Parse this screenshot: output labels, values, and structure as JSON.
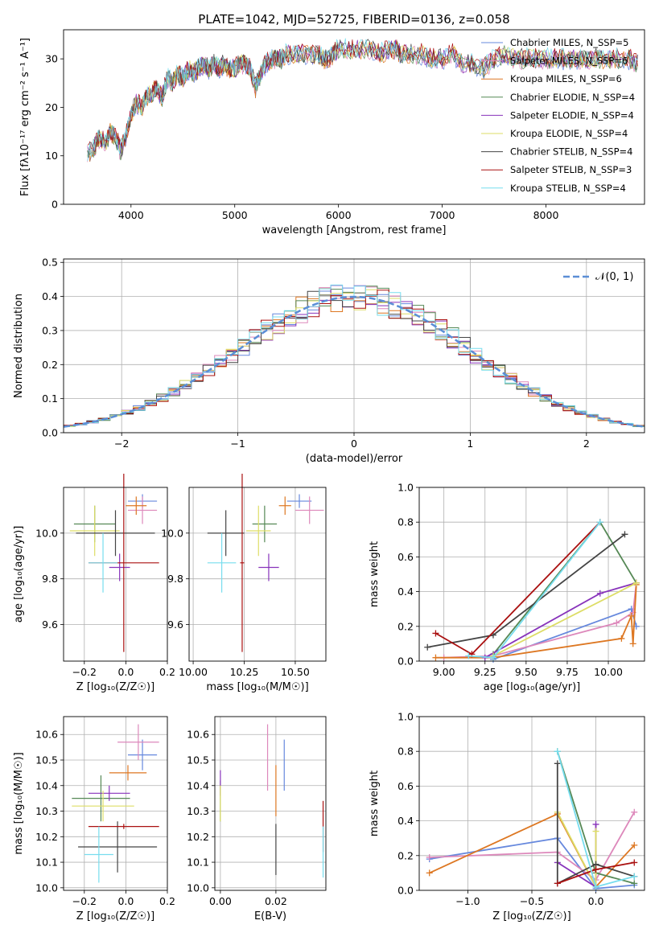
{
  "title": "PLATE=1042, MJD=52725, FIBERID=0136, z=0.058",
  "colors": [
    "#6688dd",
    "#dd88bb",
    "#dd7722",
    "#558855",
    "#8833bb",
    "#dddd66",
    "#444444",
    "#aa1111",
    "#77ddee"
  ],
  "chart_data": [
    {
      "type": "line",
      "xlabel": "wavelength [Angstrom, rest frame]",
      "ylabel": "Flux [fλ10⁻¹⁷ erg cm⁻² s⁻¹ A⁻¹]",
      "xlim": [
        3350,
        8950
      ],
      "ylim": [
        0,
        36
      ],
      "xticks": [
        "4000",
        "5000",
        "6000",
        "7000",
        "8000"
      ],
      "yticks": [
        "0",
        "10",
        "20",
        "30"
      ],
      "grid": false,
      "legend_position": "upper-right",
      "legend": [
        "Chabrier MILES, N_SSP=5",
        "Salpeter MILES, N_SSP=6",
        "Kroupa MILES, N_SSP=6",
        "Chabrier ELODIE, N_SSP=4",
        "Salpeter ELODIE, N_SSP=4",
        "Kroupa ELODIE, N_SSP=4",
        "Chabrier STELIB, N_SSP=4",
        "Salpeter STELIB, N_SSP=3",
        "Kroupa STELIB, N_SSP=4"
      ],
      "spectrum": {
        "x": [
          3580,
          3650,
          3700,
          3760,
          3800,
          3850,
          3900,
          3950,
          4000,
          4050,
          4100,
          4150,
          4200,
          4250,
          4300,
          4350,
          4400,
          4450,
          4500,
          4550,
          4600,
          4650,
          4700,
          4750,
          4800,
          4850,
          4900,
          4950,
          5000,
          5050,
          5100,
          5150,
          5200,
          5250,
          5300,
          5350,
          5400,
          5450,
          5500,
          5600,
          5700,
          5800,
          5850,
          5890,
          5950,
          6000,
          6100,
          6200,
          6300,
          6400,
          6500,
          6560,
          6600,
          6700,
          6800,
          6900,
          7000,
          7100,
          7200,
          7300,
          7400,
          7500,
          7600,
          7700,
          7800,
          7900,
          8000,
          8100,
          8200,
          8300,
          8400,
          8500,
          8600,
          8700,
          8800,
          8900
        ],
        "y": [
          10,
          12,
          14,
          13,
          15,
          14,
          11,
          14,
          18,
          21,
          20,
          22,
          23,
          24,
          22,
          26,
          25,
          27,
          26,
          28,
          27,
          28,
          29,
          28,
          29,
          28,
          29,
          28,
          28,
          29,
          29,
          28,
          24,
          27,
          29,
          30,
          30,
          30,
          31,
          31,
          31,
          31,
          30,
          30,
          31,
          32,
          32,
          32,
          32,
          31,
          32,
          32,
          31,
          31,
          31,
          30,
          30,
          31,
          29,
          29,
          28,
          30,
          31,
          30,
          30,
          30,
          30,
          30,
          30,
          30,
          30,
          30,
          30,
          30,
          30,
          29
        ]
      }
    },
    {
      "type": "bar",
      "xlabel": "(data-model)/error",
      "ylabel": "Normed distribution",
      "xlim": [
        -2.5,
        2.5
      ],
      "ylim": [
        0,
        0.51
      ],
      "xticks": [
        "−2",
        "−1",
        "0",
        "1",
        "2"
      ],
      "yticks": [
        "0.0",
        "0.1",
        "0.2",
        "0.3",
        "0.4",
        "0.5"
      ],
      "grid": true,
      "legend_position": "upper-right",
      "legend": [
        "𝒩(0, 1)"
      ],
      "bin_width": 0.1
    },
    {
      "type": "scatter",
      "xlabel": "Z [log₁₀(Z/Z☉)]",
      "ylabel": "age  [log₁₀(age/yr)]",
      "xlim": [
        -0.3,
        0.2
      ],
      "ylim": [
        9.44,
        10.2
      ],
      "xticks": [
        "−0.2",
        "0.0",
        "0.2"
      ],
      "yticks": [
        "9.6",
        "9.8",
        "10.0"
      ],
      "grid": true,
      "points": [
        {
          "x": 0.08,
          "y": 10.14,
          "xerr": 0.07,
          "yerr": 0.03
        },
        {
          "x": 0.08,
          "y": 10.1,
          "xerr": 0.07,
          "yerr": 0.06
        },
        {
          "x": 0.05,
          "y": 10.12,
          "xerr": 0.05,
          "yerr": 0.04
        },
        {
          "x": -0.15,
          "y": 10.04,
          "xerr": 0.1,
          "yerr": 0.08
        },
        {
          "x": -0.03,
          "y": 9.85,
          "xerr": 0.05,
          "yerr": 0.06
        },
        {
          "x": -0.15,
          "y": 10.01,
          "xerr": 0.12,
          "yerr": 0.11
        },
        {
          "x": -0.05,
          "y": 10.0,
          "xerr": 0.19,
          "yerr": 0.1
        },
        {
          "x": -0.01,
          "y": 9.87,
          "xerr": 0.17,
          "yerr": 0.39
        },
        {
          "x": -0.11,
          "y": 9.87,
          "xerr": 0.07,
          "yerr": 0.13
        }
      ]
    },
    {
      "type": "scatter",
      "xlabel": "mass [log₁₀(M/M☉)]",
      "ylabel": "",
      "xlim": [
        9.98,
        10.65
      ],
      "ylim": [
        9.44,
        10.2
      ],
      "xticks": [
        "10.00",
        "10.25",
        "10.50"
      ],
      "yticks": [
        "9.6",
        "9.8",
        "10.0"
      ],
      "grid": true,
      "points": [
        {
          "x": 10.52,
          "y": 10.14,
          "xerr": 0.06,
          "yerr": 0.03
        },
        {
          "x": 10.57,
          "y": 10.1,
          "xerr": 0.07,
          "yerr": 0.06
        },
        {
          "x": 10.45,
          "y": 10.12,
          "xerr": 0.03,
          "yerr": 0.04
        },
        {
          "x": 10.35,
          "y": 10.04,
          "xerr": 0.06,
          "yerr": 0.08
        },
        {
          "x": 10.37,
          "y": 9.85,
          "xerr": 0.05,
          "yerr": 0.06
        },
        {
          "x": 10.32,
          "y": 10.01,
          "xerr": 0.06,
          "yerr": 0.11
        },
        {
          "x": 10.16,
          "y": 10.0,
          "xerr": 0.09,
          "yerr": 0.1
        },
        {
          "x": 10.24,
          "y": 9.87,
          "xerr": 0.01,
          "yerr": 0.39
        },
        {
          "x": 10.14,
          "y": 9.87,
          "xerr": 0.07,
          "yerr": 0.13
        }
      ]
    },
    {
      "type": "line",
      "xlabel": "age  [log₁₀(age/yr)]",
      "ylabel": "mass weight",
      "xlim": [
        8.85,
        10.22
      ],
      "ylim": [
        0,
        1
      ],
      "xticks": [
        "9.00",
        "9.25",
        "9.50",
        "9.75",
        "10.00"
      ],
      "yticks": [
        "0.0",
        "0.2",
        "0.4",
        "0.6",
        "0.8",
        "1.0"
      ],
      "grid": true,
      "series": [
        {
          "x": [
            9.3,
            10.14,
            10.17
          ],
          "y": [
            0.01,
            0.3,
            0.2
          ]
        },
        {
          "x": [
            9.0,
            9.3,
            10.05,
            10.15,
            10.17
          ],
          "y": [
            0.02,
            0.03,
            0.22,
            0.28,
            0.45
          ]
        },
        {
          "x": [
            8.95,
            9.3,
            10.08,
            10.14,
            10.15,
            10.17
          ],
          "y": [
            0.02,
            0.02,
            0.13,
            0.26,
            0.1,
            0.44
          ]
        },
        {
          "x": [
            9.3,
            9.95,
            10.17
          ],
          "y": [
            0.04,
            0.8,
            0.45
          ]
        },
        {
          "x": [
            9.25,
            9.95,
            10.17
          ],
          "y": [
            0.02,
            0.39,
            0.45
          ]
        },
        {
          "x": [
            9.3,
            10.17
          ],
          "y": [
            0.03,
            0.45
          ]
        },
        {
          "x": [
            8.9,
            9.3,
            10.1
          ],
          "y": [
            0.08,
            0.15,
            0.73
          ]
        },
        {
          "x": [
            8.95,
            9.17,
            9.95
          ],
          "y": [
            0.16,
            0.04,
            0.8
          ]
        },
        {
          "x": [
            9.15,
            9.3,
            9.95
          ],
          "y": [
            0.03,
            0.02,
            0.8
          ]
        }
      ]
    },
    {
      "type": "scatter",
      "xlabel": "Z [log₁₀(Z/Z☉)]",
      "ylabel": "mass [log₁₀(M/M☉)]",
      "xlim": [
        -0.3,
        0.2
      ],
      "ylim": [
        9.99,
        10.67
      ],
      "xticks": [
        "−0.2",
        "0.0",
        "0.2"
      ],
      "yticks": [
        "10.0",
        "10.1",
        "10.2",
        "10.3",
        "10.4",
        "10.5",
        "10.6"
      ],
      "grid": true,
      "points": [
        {
          "x": 0.08,
          "y": 10.52,
          "xerr": 0.07,
          "yerr": 0.06
        },
        {
          "x": 0.06,
          "y": 10.57,
          "xerr": 0.1,
          "yerr": 0.07
        },
        {
          "x": 0.01,
          "y": 10.45,
          "xerr": 0.09,
          "yerr": 0.03
        },
        {
          "x": -0.12,
          "y": 10.35,
          "xerr": 0.14,
          "yerr": 0.09
        },
        {
          "x": -0.08,
          "y": 10.37,
          "xerr": 0.1,
          "yerr": 0.03
        },
        {
          "x": -0.11,
          "y": 10.32,
          "xerr": 0.15,
          "yerr": 0.06
        },
        {
          "x": -0.04,
          "y": 10.16,
          "xerr": 0.19,
          "yerr": 0.1
        },
        {
          "x": -0.01,
          "y": 10.24,
          "xerr": 0.17,
          "yerr": 0.01
        },
        {
          "x": -0.13,
          "y": 10.13,
          "xerr": 0.07,
          "yerr": 0.11
        }
      ]
    },
    {
      "type": "scatter",
      "xlabel": "E(B-V)",
      "ylabel": "",
      "xlim": [
        -0.002,
        0.038
      ],
      "ylim": [
        9.99,
        10.67
      ],
      "xticks": [
        "0.00",
        "0.02"
      ],
      "yticks": [
        "10.0",
        "10.1",
        "10.2",
        "10.3",
        "10.4",
        "10.5",
        "10.6"
      ],
      "grid": true,
      "points": [
        {
          "x": 0.023,
          "y": 10.48,
          "yerr": 0.1
        },
        {
          "x": 0.017,
          "y": 10.51,
          "yerr": 0.13
        },
        {
          "x": 0.02,
          "y": 10.38,
          "yerr": 0.1
        },
        {
          "x": 0.0,
          "y": 10.34,
          "yerr": 0.08
        },
        {
          "x": 0.0,
          "y": 10.41,
          "yerr": 0.05
        },
        {
          "x": 0.0,
          "y": 10.33,
          "yerr": 0.07
        },
        {
          "x": 0.02,
          "y": 10.15,
          "yerr": 0.1
        },
        {
          "x": 0.037,
          "y": 10.24,
          "yerr": 0.1
        },
        {
          "x": 0.037,
          "y": 10.14,
          "yerr": 0.1
        }
      ]
    },
    {
      "type": "line",
      "xlabel": "Z [log₁₀(Z/Z☉)]",
      "ylabel": "mass weight",
      "xlim": [
        -1.38,
        0.38
      ],
      "ylim": [
        0,
        1
      ],
      "xticks": [
        "−1.0",
        "−0.5",
        "0.0"
      ],
      "yticks": [
        "0.0",
        "0.2",
        "0.4",
        "0.6",
        "0.8",
        "1.0"
      ],
      "grid": true,
      "series": [
        {
          "x": [
            -1.3,
            -0.3,
            0.0,
            0.3
          ],
          "y": [
            0.18,
            0.3,
            0.01,
            0.03
          ]
        },
        {
          "x": [
            -1.3,
            -0.3,
            0.0,
            0.3
          ],
          "y": [
            0.19,
            0.22,
            0.06,
            0.45
          ]
        },
        {
          "x": [
            -1.3,
            -0.3,
            0.0,
            0.3
          ],
          "y": [
            0.1,
            0.44,
            0.02,
            0.26
          ]
        },
        {
          "x": [
            -0.3,
            0.0,
            0.3
          ],
          "y": [
            0.8,
            0.1,
            0.04
          ]
        },
        {
          "x": [
            -0.3,
            0.0,
            0.0
          ],
          "y": [
            0.16,
            0.02,
            0.38
          ]
        },
        {
          "x": [
            -0.3,
            0.0,
            0.0
          ],
          "y": [
            0.45,
            0.02,
            0.34
          ]
        },
        {
          "x": [
            -0.3,
            -0.3,
            0.0,
            0.3
          ],
          "y": [
            0.73,
            0.04,
            0.15,
            0.08
          ]
        },
        {
          "x": [
            -0.3,
            0.0,
            0.3
          ],
          "y": [
            0.04,
            0.12,
            0.16
          ]
        },
        {
          "x": [
            -0.3,
            0.0,
            0.3
          ],
          "y": [
            0.8,
            0.02,
            0.08
          ]
        }
      ]
    }
  ]
}
